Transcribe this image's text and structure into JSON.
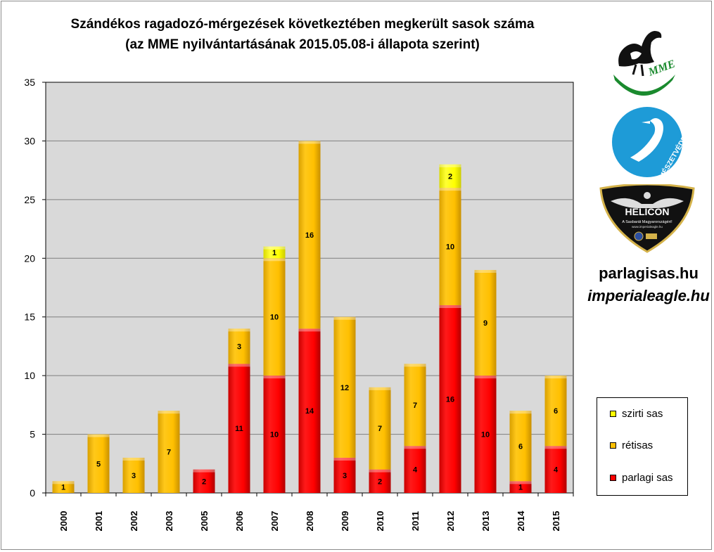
{
  "title": {
    "line1": "Szándékos ragadozó-mérgezések következtében megkerült sasok száma",
    "line2": "(az MME nyilvántartásának 2015.05.08-i  állapota szerint)"
  },
  "chart_data": {
    "type": "bar",
    "stacked": true,
    "title": "Szándékos ragadozó-mérgezések következtében megkerült sasok száma (az MME nyilvántartásának 2015.05.08-i  állapota szerint)",
    "categories": [
      "2000",
      "2001",
      "2002",
      "2003",
      "2005",
      "2006",
      "2007",
      "2008",
      "2009",
      "2010",
      "2011",
      "2012",
      "2013",
      "2014",
      "2015"
    ],
    "series": [
      {
        "name": "parlagi sas",
        "color": "#ff0000",
        "values": [
          0,
          0,
          0,
          0,
          2,
          11,
          10,
          14,
          3,
          2,
          4,
          16,
          10,
          1,
          4
        ]
      },
      {
        "name": "rétisas",
        "color": "#ffc000",
        "values": [
          1,
          5,
          3,
          7,
          0,
          3,
          10,
          16,
          12,
          7,
          7,
          10,
          9,
          6,
          6
        ]
      },
      {
        "name": "szirti sas",
        "color": "#ffff00",
        "values": [
          0,
          0,
          0,
          0,
          0,
          0,
          1,
          0,
          0,
          0,
          0,
          2,
          0,
          0,
          0
        ]
      }
    ],
    "ylim": [
      0,
      35
    ],
    "yticks": [
      0,
      5,
      10,
      15,
      20,
      25,
      30,
      35
    ],
    "grid": true,
    "legend_position": "bottom-right",
    "plot_background": "#d9d9d9"
  },
  "legend": {
    "items": [
      {
        "label": "szirti sas",
        "color": "#ffff00"
      },
      {
        "label": "rétisas",
        "color": "#ffc000"
      },
      {
        "label": "parlagi sas",
        "color": "#ff0000"
      }
    ]
  },
  "logos": {
    "mme": {
      "text": "MME",
      "icon": "mme-bird-logo"
    },
    "termeszetvedelem": {
      "text": "TERMÉSZETVÉDELEM",
      "icon": "heron-logo"
    },
    "helicon": {
      "text": "HELICON",
      "subtext": "A Sasbarát Magyarországért!",
      "url_text": "www.imperialeagle.hu",
      "icon": "eagle-shield-logo"
    }
  },
  "sites": {
    "hu": "parlagisas.hu",
    "en": "imperialeagle.hu"
  }
}
